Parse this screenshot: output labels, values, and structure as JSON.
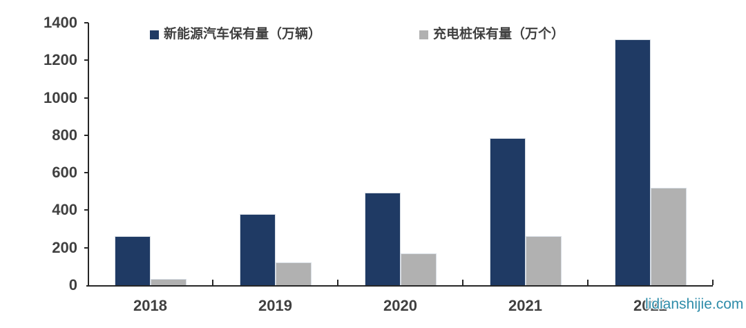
{
  "watermark": "lidianshijie.com",
  "colors": {
    "series_nev": "#1f3a64",
    "series_piles": "#b1b1b1",
    "axis": "#262626",
    "label_text": "#404040",
    "watermark": "#2e8ca9"
  },
  "chart_data": {
    "type": "bar",
    "title": "",
    "xlabel": "",
    "ylabel": "",
    "categories": [
      "2018",
      "2019",
      "2020",
      "2021",
      "2022"
    ],
    "series": [
      {
        "name": "新能源汽车保有量（万辆）",
        "color": "#1f3a64",
        "values": [
          261,
          381,
          492,
          784,
          1310
        ]
      },
      {
        "name": "充电桩保有量（万个）",
        "color": "#b1b1b1",
        "values": [
          35,
          122,
          168,
          262,
          521
        ]
      }
    ],
    "ylim": [
      0,
      1400
    ],
    "yticks": [
      0,
      200,
      400,
      600,
      800,
      1000,
      1200,
      1400
    ],
    "grid": false,
    "legend_position": "top"
  }
}
